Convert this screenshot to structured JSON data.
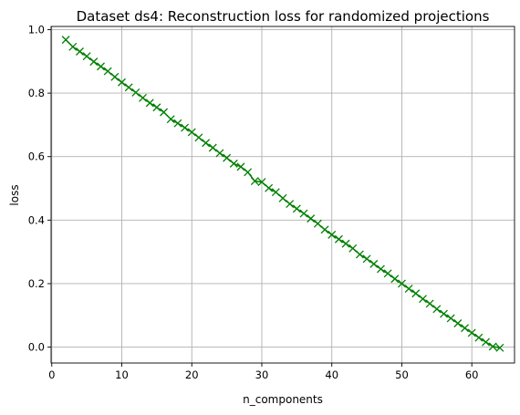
{
  "chart_data": {
    "type": "line",
    "title": "Dataset ds4: Reconstruction loss for randomized projections",
    "xlabel": "n_components",
    "ylabel": "loss",
    "xlim": [
      -0.1,
      66.1
    ],
    "ylim": [
      -0.05,
      1.01
    ],
    "xticks": [
      0,
      10,
      20,
      30,
      40,
      50,
      60
    ],
    "yticks": [
      0.0,
      0.2,
      0.4,
      0.6,
      0.8,
      1.0
    ],
    "xtick_labels": [
      "0",
      "10",
      "20",
      "30",
      "40",
      "50",
      "60"
    ],
    "ytick_labels": [
      "0.0",
      "0.2",
      "0.4",
      "0.6",
      "0.8",
      "1.0"
    ],
    "grid": true,
    "series": [
      {
        "color": "#008000",
        "marker": "x",
        "x": [
          2,
          3,
          4,
          5,
          6,
          7,
          8,
          9,
          10,
          11,
          12,
          13,
          14,
          15,
          16,
          17,
          18,
          19,
          20,
          21,
          22,
          23,
          24,
          25,
          26,
          27,
          28,
          29,
          30,
          31,
          32,
          33,
          34,
          35,
          36,
          37,
          38,
          39,
          40,
          41,
          42,
          43,
          44,
          45,
          46,
          47,
          48,
          49,
          50,
          51,
          52,
          53,
          54,
          55,
          56,
          57,
          58,
          59,
          60,
          61,
          62,
          63,
          64
        ],
        "y": [
          0.968,
          0.946,
          0.931,
          0.916,
          0.899,
          0.884,
          0.869,
          0.851,
          0.834,
          0.818,
          0.802,
          0.785,
          0.769,
          0.755,
          0.74,
          0.718,
          0.705,
          0.691,
          0.677,
          0.66,
          0.643,
          0.628,
          0.611,
          0.596,
          0.578,
          0.568,
          0.551,
          0.523,
          0.52,
          0.501,
          0.488,
          0.469,
          0.451,
          0.436,
          0.421,
          0.405,
          0.389,
          0.37,
          0.354,
          0.34,
          0.326,
          0.311,
          0.292,
          0.278,
          0.262,
          0.246,
          0.232,
          0.215,
          0.2,
          0.184,
          0.169,
          0.152,
          0.137,
          0.12,
          0.105,
          0.091,
          0.075,
          0.06,
          0.045,
          0.03,
          0.016,
          0.002,
          -0.002
        ]
      }
    ]
  }
}
